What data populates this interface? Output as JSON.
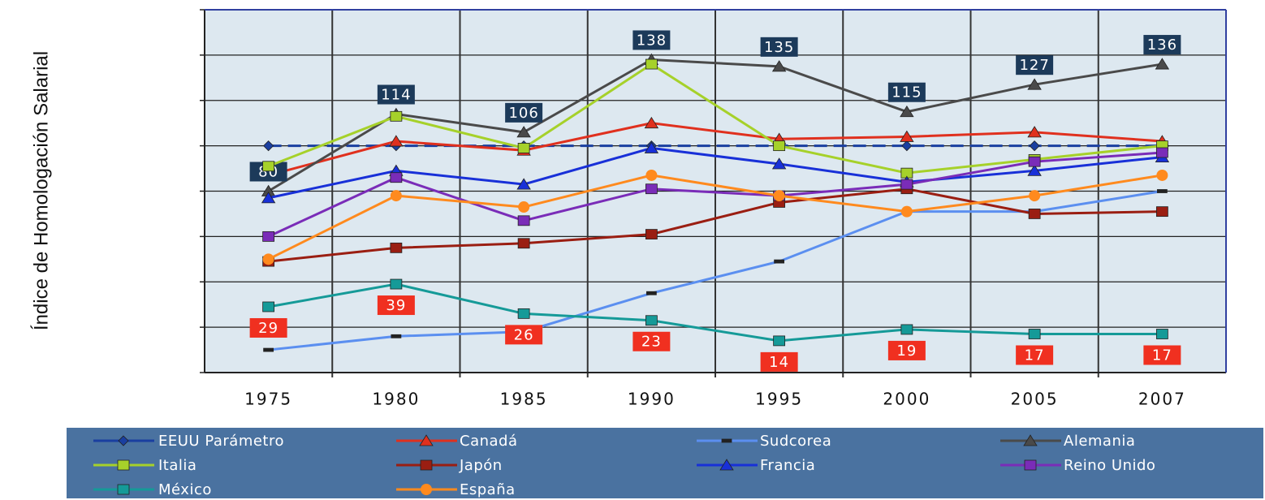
{
  "chart_data": {
    "type": "line",
    "y_label": "Índice de Homologación Salarial",
    "categories": [
      "1975",
      "1980",
      "1985",
      "1990",
      "1995",
      "2000",
      "2005",
      "2007"
    ],
    "ylim": [
      0,
      160
    ],
    "yticks": [
      0,
      20,
      40,
      60,
      80,
      100,
      120,
      140,
      160
    ],
    "grid": true,
    "series": [
      {
        "name": "EEUU Parámetro",
        "color": "#1a3fa0",
        "marker": "diamond",
        "dash": true,
        "values": [
          100,
          100,
          100,
          100,
          100,
          100,
          100,
          100
        ]
      },
      {
        "name": "Canadá",
        "color": "#e0301e",
        "marker": "triangle",
        "values": [
          87,
          102,
          98,
          110,
          103,
          104,
          106,
          102
        ]
      },
      {
        "name": "Sudcorea",
        "color": "#5b8ff0",
        "marker": "dash",
        "values": [
          10,
          16,
          18,
          35,
          49,
          71,
          71,
          80
        ]
      },
      {
        "name": "Alemania",
        "color": "#4a4a4a",
        "marker": "triangle",
        "label_bg": "#1c3a5a",
        "values": [
          80,
          114,
          106,
          138,
          135,
          115,
          127,
          136
        ]
      },
      {
        "name": "Italia",
        "color": "#a6d12a",
        "marker": "square",
        "values": [
          91,
          113,
          99,
          136,
          100,
          88,
          94,
          100
        ]
      },
      {
        "name": "Japón",
        "color": "#9a1e12",
        "marker": "square",
        "values": [
          49,
          55,
          57,
          61,
          75,
          81,
          70,
          71
        ]
      },
      {
        "name": "Francia",
        "color": "#1830d8",
        "marker": "triangle",
        "values": [
          77,
          89,
          83,
          99,
          92,
          84,
          89,
          95
        ]
      },
      {
        "name": "Reino Unido",
        "color": "#7a2cb8",
        "marker": "square",
        "values": [
          60,
          86,
          67,
          81,
          78,
          83,
          93,
          97
        ]
      },
      {
        "name": "México",
        "color": "#159a98",
        "marker": "square",
        "label_bg": "#f03020",
        "label_below": true,
        "values": [
          29,
          39,
          26,
          23,
          14,
          19,
          17,
          17
        ]
      },
      {
        "name": "España",
        "color": "#ff8a1e",
        "marker": "circle",
        "values": [
          50,
          78,
          73,
          87,
          78,
          71,
          78,
          87
        ]
      }
    ]
  }
}
